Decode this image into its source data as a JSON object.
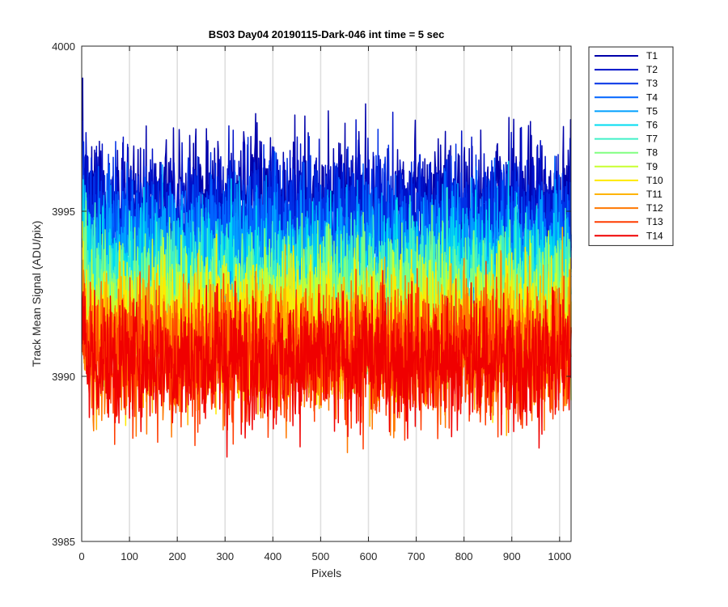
{
  "chart_data": {
    "type": "line",
    "title": "BS03 Day04 20190115-Dark-046 int time = 5 sec",
    "xlabel": "Pixels",
    "ylabel": "Track Mean Signal (ADU/pix)",
    "xlim": [
      0,
      1024
    ],
    "ylim": [
      3985,
      4000
    ],
    "xticks": [
      0,
      100,
      200,
      300,
      400,
      500,
      600,
      700,
      800,
      900,
      1000
    ],
    "yticks": [
      3985,
      3990,
      3995,
      4000
    ],
    "x_grid": true,
    "y_grid": false,
    "legend_position": "outside-top-right",
    "series": [
      {
        "name": "T1",
        "color": "#0000aa",
        "mean": 3995.3,
        "noise": 1.0
      },
      {
        "name": "T2",
        "color": "#0010c8",
        "mean": 3995.0,
        "noise": 1.0
      },
      {
        "name": "T3",
        "color": "#0030e6",
        "mean": 3994.6,
        "noise": 1.0
      },
      {
        "name": "T4",
        "color": "#0064ff",
        "mean": 3994.1,
        "noise": 1.0
      },
      {
        "name": "T5",
        "color": "#00a0ff",
        "mean": 3993.6,
        "noise": 1.0
      },
      {
        "name": "T6",
        "color": "#00dcf0",
        "mean": 3993.1,
        "noise": 1.0
      },
      {
        "name": "T7",
        "color": "#40f0c8",
        "mean": 3992.7,
        "noise": 1.0
      },
      {
        "name": "T8",
        "color": "#80ff80",
        "mean": 3992.3,
        "noise": 1.0
      },
      {
        "name": "T9",
        "color": "#c8ff30",
        "mean": 3991.9,
        "noise": 1.0
      },
      {
        "name": "T10",
        "color": "#ffea00",
        "mean": 3991.5,
        "noise": 1.0
      },
      {
        "name": "T11",
        "color": "#ffb400",
        "mean": 3991.1,
        "noise": 1.0
      },
      {
        "name": "T12",
        "color": "#ff7800",
        "mean": 3990.8,
        "noise": 1.0
      },
      {
        "name": "T13",
        "color": "#ff3c00",
        "mean": 3990.6,
        "noise": 1.0
      },
      {
        "name": "T14",
        "color": "#f00000",
        "mean": 3990.5,
        "noise": 1.0
      }
    ]
  }
}
